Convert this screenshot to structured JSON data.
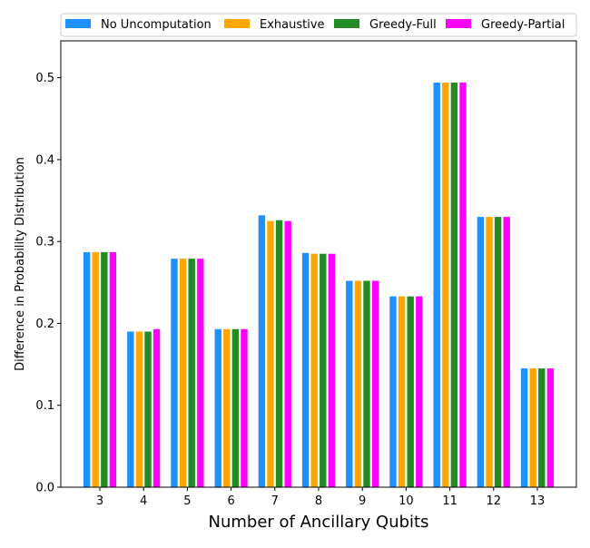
{
  "chart_data": {
    "type": "bar",
    "title": "",
    "xlabel": "Number of Ancillary Qubits",
    "ylabel": "Difference in Probability Distribution",
    "categories": [
      "3",
      "4",
      "5",
      "6",
      "7",
      "8",
      "9",
      "10",
      "11",
      "12",
      "13"
    ],
    "ylim": [
      0,
      0.545
    ],
    "yticks": [
      "0.0",
      "0.1",
      "0.2",
      "0.3",
      "0.4",
      "0.5"
    ],
    "grid": false,
    "legend_position": "top",
    "series": [
      {
        "name": "No Uncomputation",
        "color": "#1e90ff",
        "values": [
          0.287,
          0.19,
          0.279,
          0.193,
          0.332,
          0.286,
          0.252,
          0.233,
          0.494,
          0.33,
          0.145
        ]
      },
      {
        "name": "Exhaustive",
        "color": "#ffa500",
        "values": [
          0.287,
          0.19,
          0.279,
          0.193,
          0.325,
          0.285,
          0.252,
          0.233,
          0.494,
          0.33,
          0.145
        ]
      },
      {
        "name": "Greedy-Full",
        "color": "#228b22",
        "values": [
          0.287,
          0.19,
          0.279,
          0.193,
          0.326,
          0.285,
          0.252,
          0.233,
          0.494,
          0.33,
          0.145
        ]
      },
      {
        "name": "Greedy-Partial",
        "color": "#ff00ff",
        "values": [
          0.287,
          0.193,
          0.279,
          0.193,
          0.325,
          0.285,
          0.252,
          0.233,
          0.494,
          0.33,
          0.145
        ]
      }
    ]
  }
}
